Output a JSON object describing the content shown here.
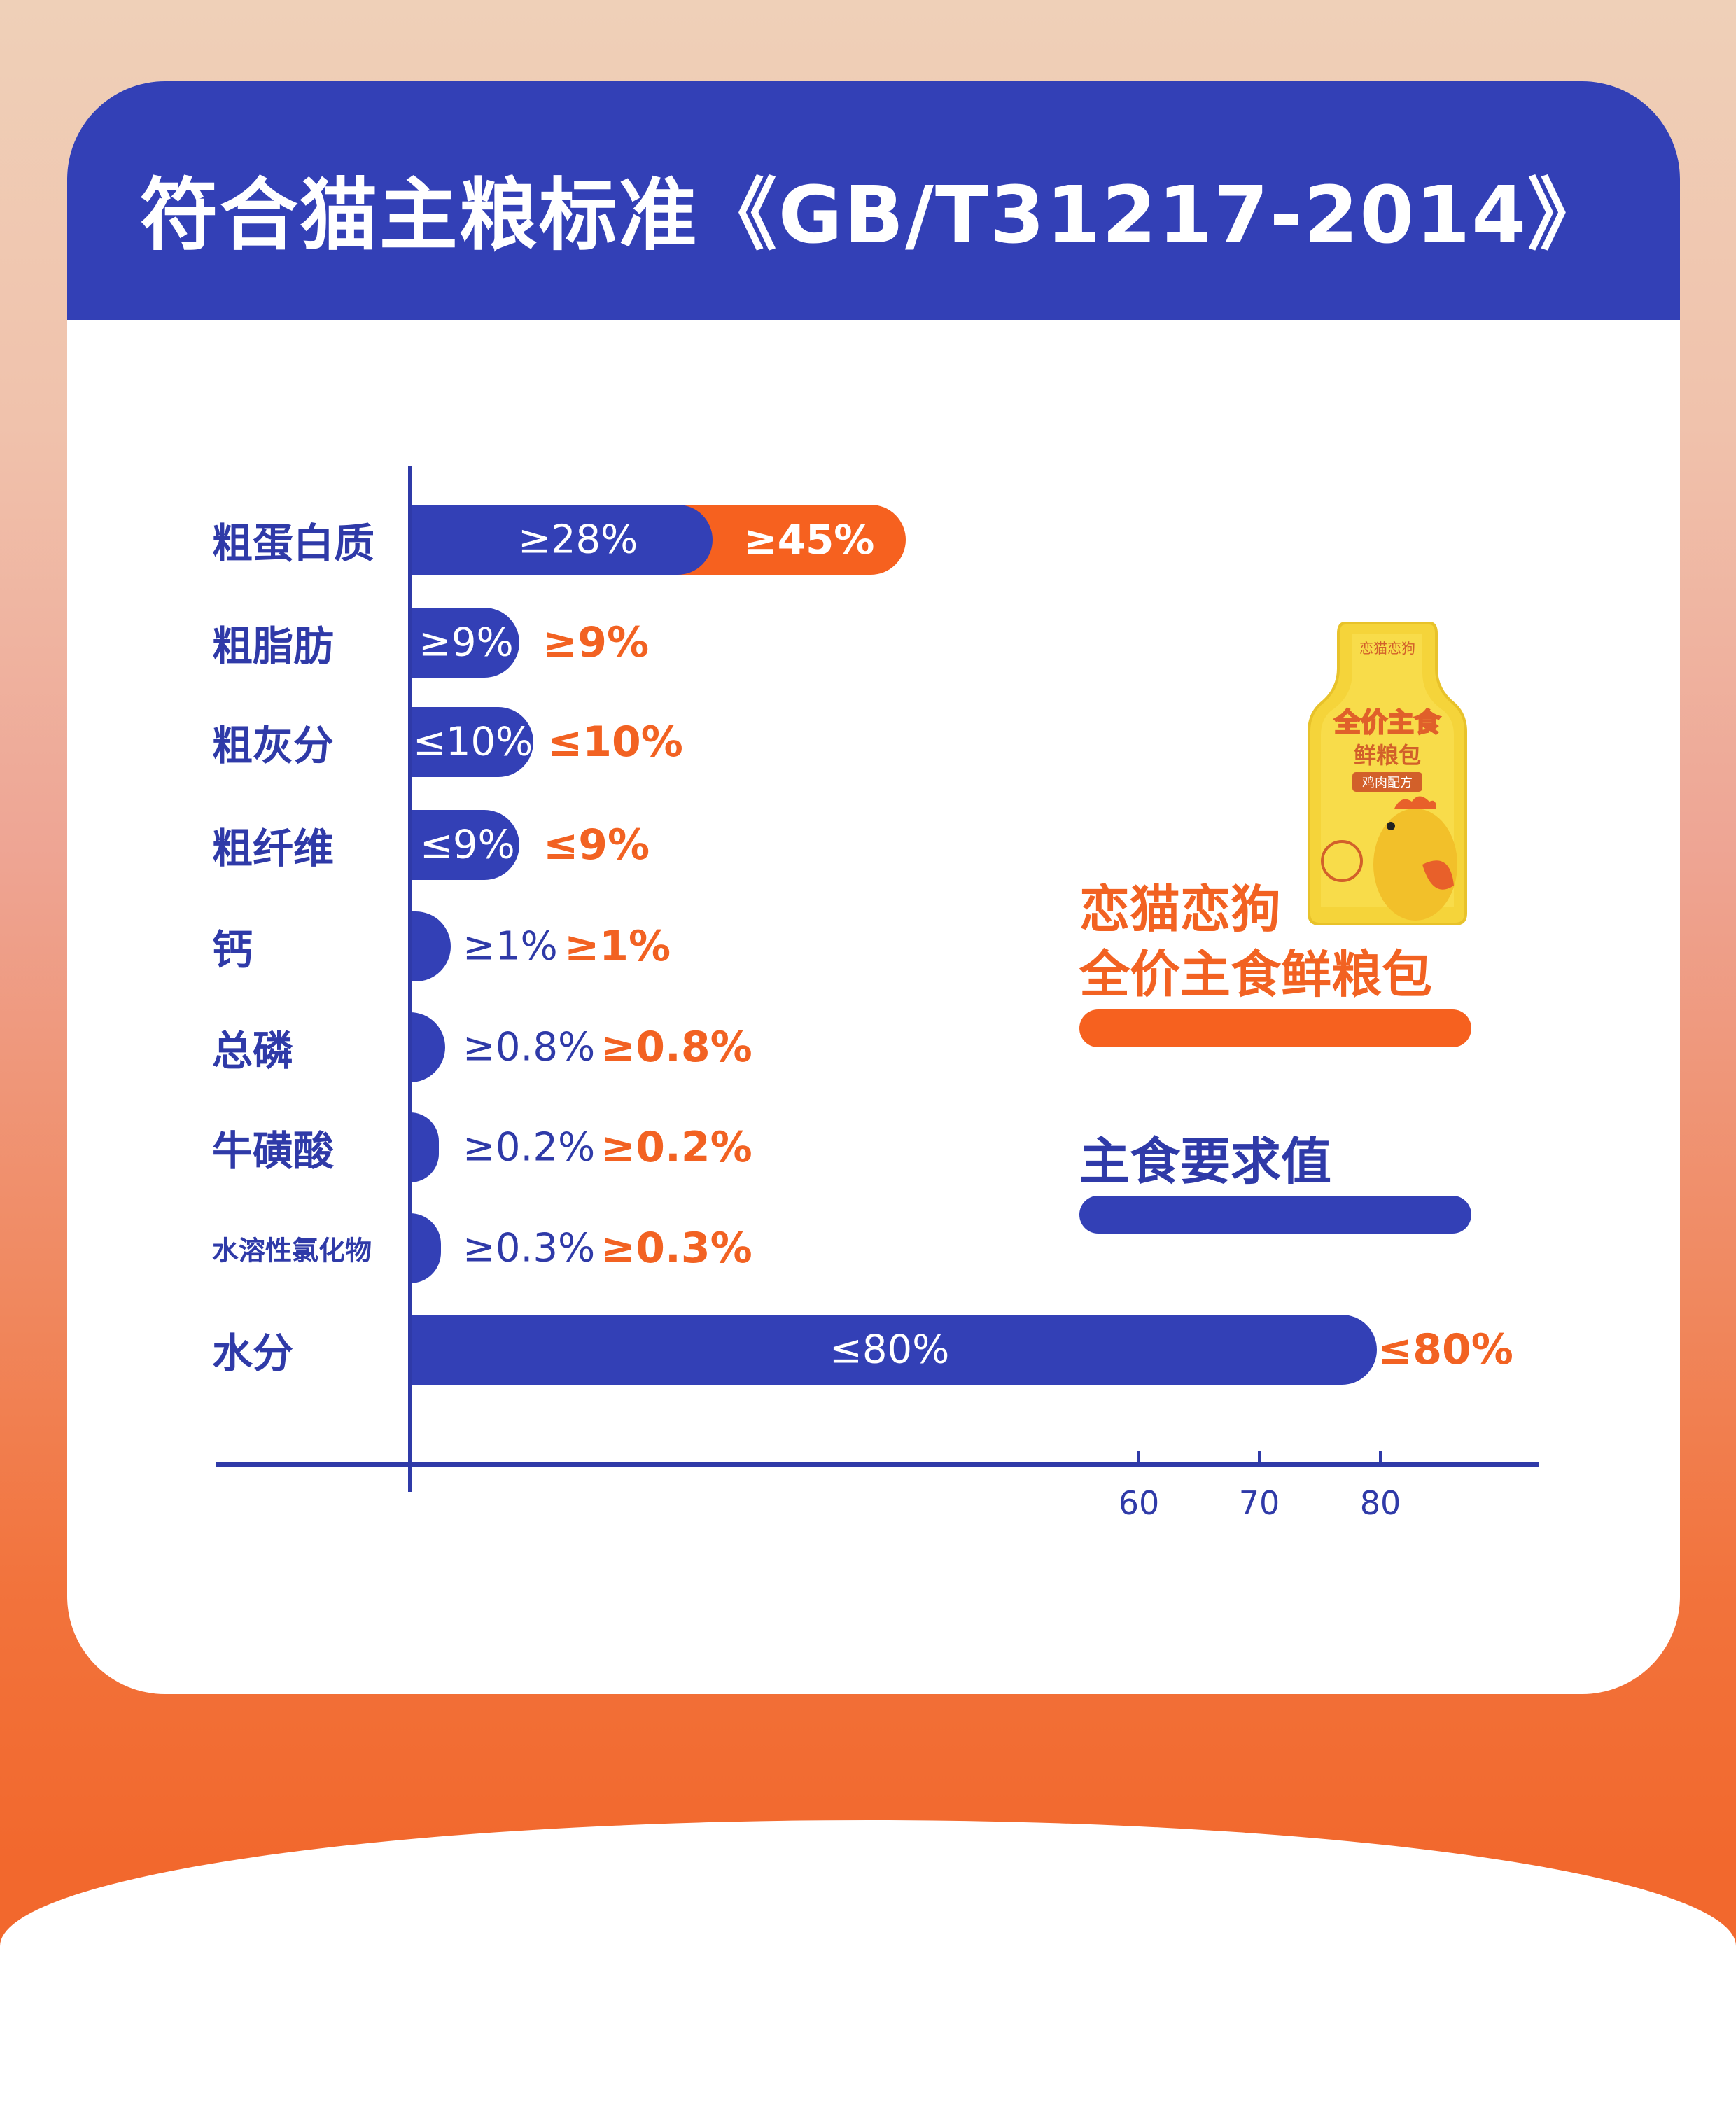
{
  "title": "符合猫主粮标准《GB/T31217-2014》",
  "chart_data": {
    "type": "bar",
    "title": "符合猫主粮标准《GB/T31217-2014》",
    "categories": [
      "粗蛋白质",
      "粗脂肪",
      "粗灰分",
      "粗纤维",
      "钙",
      "总磷",
      "牛磺酸",
      "水溶性氯化物",
      "水分"
    ],
    "series": [
      {
        "name": "主食要求值",
        "color": "#3340b6",
        "values": [
          28,
          9,
          10,
          9,
          1,
          0.8,
          0.2,
          0.3,
          80
        ],
        "labels": [
          "≥28%",
          "≥9%",
          "≤10%",
          "≤9%",
          "≥1%",
          "≥0.8%",
          "≥0.2%",
          "≥0.3%",
          "≤80%"
        ]
      },
      {
        "name": "恋猫恋狗全价主食鲜粮包",
        "color": "#f6611f",
        "values": [
          45,
          9,
          10,
          9,
          1,
          0.8,
          0.2,
          0.3,
          80
        ],
        "labels": [
          "≥45%",
          "≥9%",
          "≤10%",
          "≤9%",
          "≥1%",
          "≥0.8%",
          "≥0.2%",
          "≥0.3%",
          "≤80%"
        ]
      }
    ],
    "x_ticks": [
      "60",
      "70",
      "80"
    ],
    "legend_position": "right"
  },
  "legend": {
    "product_line1": "恋猫恋狗",
    "product_line2": "全价主食鲜粮包",
    "standard": "主食要求值"
  },
  "pouch_text": {
    "brand": "恋猫恋狗",
    "name1": "全价主食",
    "name2": "鲜粮包",
    "tag": "鸡肉配方"
  }
}
